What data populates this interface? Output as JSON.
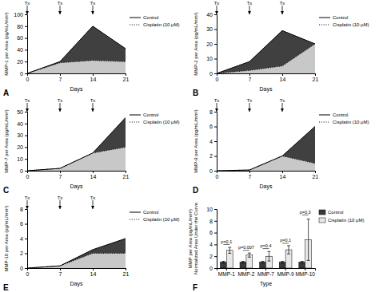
{
  "chart_data": [
    {
      "type": "area",
      "title": "A",
      "xlabel": "Days",
      "ylabel": "MMP-1 per Area (pg/mL/mm²)",
      "x": [
        0,
        7,
        14,
        21
      ],
      "xlim": [
        0,
        21
      ],
      "xticks": [
        0,
        7,
        14,
        21
      ],
      "ylim": [
        0,
        100
      ],
      "yticks": [
        0,
        20,
        40,
        60,
        80,
        100
      ],
      "legend": "right",
      "series": [
        {
          "name": "Control",
          "color": "#404040",
          "line_style": "solid",
          "values": [
            0,
            20,
            80,
            42
          ]
        },
        {
          "name": "Cisplatin (10 μM)",
          "color": "#c8c8c8",
          "line_style": "dotted",
          "values": [
            0,
            18,
            22,
            20
          ]
        }
      ],
      "annotations": [
        {
          "x": 0,
          "label": "Tx"
        },
        {
          "x": 7,
          "label": "Tx"
        },
        {
          "x": 14,
          "label": "Tx"
        }
      ]
    },
    {
      "type": "area",
      "title": "B",
      "xlabel": "Days",
      "ylabel": "MMP-2 per Area (pg/mL/mm²)",
      "x": [
        0,
        7,
        14,
        21
      ],
      "xlim": [
        0,
        21
      ],
      "xticks": [
        0,
        7,
        14,
        21
      ],
      "ylim": [
        0,
        40
      ],
      "yticks": [
        0,
        10,
        20,
        30,
        40
      ],
      "legend": "right",
      "series": [
        {
          "name": "Control",
          "color": "#404040",
          "line_style": "solid",
          "values": [
            0,
            8,
            29,
            20
          ]
        },
        {
          "name": "Cisplatin (10 μM)",
          "color": "#c8c8c8",
          "line_style": "dotted",
          "values": [
            0,
            2,
            5,
            20
          ]
        }
      ],
      "annotations": [
        {
          "x": 0,
          "label": "Tx"
        },
        {
          "x": 7,
          "label": "Tx"
        },
        {
          "x": 14,
          "label": "Tx"
        }
      ]
    },
    {
      "type": "area",
      "title": "C",
      "xlabel": "Days",
      "ylabel": "MMP-7 per Area (pg/mL/mm²)",
      "x": [
        0,
        7,
        14,
        21
      ],
      "xlim": [
        0,
        21
      ],
      "xticks": [
        0,
        7,
        14,
        21
      ],
      "ylim": [
        0,
        50
      ],
      "yticks": [
        0,
        10,
        20,
        30,
        40,
        50
      ],
      "legend": "right",
      "series": [
        {
          "name": "Control",
          "color": "#404040",
          "line_style": "solid",
          "values": [
            0,
            2,
            15,
            45
          ]
        },
        {
          "name": "Cisplatin (10 μM)",
          "color": "#c8c8c8",
          "line_style": "dotted",
          "values": [
            0,
            2,
            15,
            20
          ]
        }
      ],
      "annotations": [
        {
          "x": 0,
          "label": "Tx"
        },
        {
          "x": 7,
          "label": "Tx"
        },
        {
          "x": 14,
          "label": "Tx"
        }
      ]
    },
    {
      "type": "area",
      "title": "D",
      "xlabel": "Days",
      "ylabel": "MMP-9 per Area (pg/mL/mm²)",
      "x": [
        0,
        7,
        14,
        21
      ],
      "xlim": [
        0,
        21
      ],
      "xticks": [
        0,
        7,
        14,
        21
      ],
      "ylim": [
        0,
        8
      ],
      "yticks": [
        0,
        2,
        4,
        6,
        8
      ],
      "legend": "right",
      "series": [
        {
          "name": "Control",
          "color": "#404040",
          "line_style": "solid",
          "values": [
            0,
            0.1,
            2,
            6
          ]
        },
        {
          "name": "Cisplatin (10 μM)",
          "color": "#c8c8c8",
          "line_style": "dotted",
          "values": [
            0,
            0.1,
            2,
            1
          ]
        }
      ],
      "annotations": [
        {
          "x": 0,
          "label": "Tx"
        },
        {
          "x": 7,
          "label": "Tx"
        },
        {
          "x": 14,
          "label": "Tx"
        }
      ]
    },
    {
      "type": "area",
      "title": "E",
      "xlabel": "Days",
      "ylabel": "MMP-10 per Area (pg/mL/mm²)",
      "x": [
        0,
        7,
        14,
        21
      ],
      "xlim": [
        0,
        21
      ],
      "xticks": [
        0,
        7,
        14,
        21
      ],
      "ylim": [
        0,
        8
      ],
      "yticks": [
        0,
        2,
        4,
        6,
        8
      ],
      "legend": "right",
      "series": [
        {
          "name": "Control",
          "color": "#404040",
          "line_style": "solid",
          "values": [
            0,
            0.3,
            2.5,
            4
          ]
        },
        {
          "name": "Cisplatin (10 μM)",
          "color": "#c8c8c8",
          "line_style": "dotted",
          "values": [
            0,
            0.3,
            2.0,
            2.0
          ]
        }
      ],
      "annotations": [
        {
          "x": 0,
          "label": "Tx"
        },
        {
          "x": 7,
          "label": "Tx"
        },
        {
          "x": 14,
          "label": "Tx"
        }
      ]
    },
    {
      "type": "bar",
      "title": "F",
      "xlabel": "Type",
      "ylabel": "MMP per Area (pg/mL/mm²)\nNormalized Area Under the Curve",
      "categories": [
        "MMP-1",
        "MMP-2",
        "MMP-7",
        "MMP-9",
        "MMP-10"
      ],
      "ylim": [
        0,
        10
      ],
      "yticks": [
        0,
        2,
        4,
        6,
        8,
        10
      ],
      "legend": "right",
      "series": [
        {
          "name": "Control",
          "color": "#3a3a3a",
          "values": [
            1,
            1,
            1,
            1,
            1
          ],
          "errors": [
            0.15,
            0.15,
            0.15,
            0.15,
            0.15
          ]
        },
        {
          "name": "Cisplatin (10 μM)",
          "color": "#e8e8e8",
          "values": [
            3.0,
            2.2,
            2.0,
            3.1,
            4.8
          ],
          "errors": [
            0.5,
            0.35,
            0.8,
            0.7,
            3.5
          ]
        }
      ],
      "annotations": [
        {
          "category": "MMP-1",
          "y": 4.0,
          "label": "p=0.1"
        },
        {
          "category": "MMP-2",
          "y": 3.0,
          "label": "p=0.007"
        },
        {
          "category": "MMP-7",
          "y": 3.3,
          "label": "p=0.4"
        },
        {
          "category": "MMP-9",
          "y": 4.2,
          "label": "p=0.1"
        },
        {
          "category": "MMP-10",
          "y": 9.0,
          "label": "p=0.3"
        }
      ]
    }
  ]
}
